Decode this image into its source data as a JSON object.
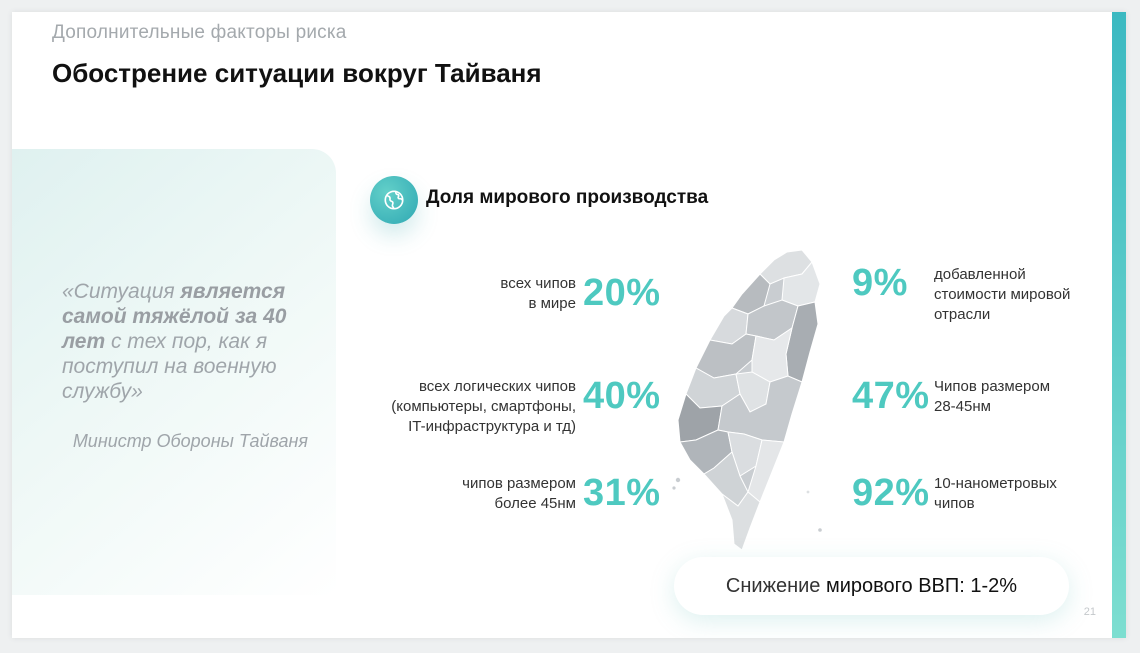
{
  "header": {
    "section_label": "Дополнительные факторы риска",
    "title": "Обострение ситуации вокруг Тайваня"
  },
  "quote": {
    "part1": "«Ситуация ",
    "bold": "является самой тяжёлой за 40 лет",
    "part2": " с тех пор, как я поступил на военную службу»",
    "author": "Министр Обороны Тайваня"
  },
  "section": {
    "heading": "Доля мирового производства",
    "icon": "globe-icon"
  },
  "stats_left": [
    {
      "label": "всех чипов\nв мире",
      "value": "20%"
    },
    {
      "label": "всех логических чипов\n(компьютеры, смартфоны,\nIT-инфраструктура и тд)",
      "value": "40%"
    },
    {
      "label": "чипов размером\nболее 45нм",
      "value": "31%"
    }
  ],
  "stats_right": [
    {
      "label": "добавленной\nстоимости мировой\nотрасли",
      "value": "9%"
    },
    {
      "label": "Чипов размером\n28-45нм",
      "value": "47%"
    },
    {
      "label": "10-нанометровых\nчипов",
      "value": "92%"
    }
  ],
  "gdp": {
    "prefix": "Снижение ",
    "emphasis": "мирового ВВП: 1-2%"
  },
  "page_number": "21",
  "colors": {
    "accent": "#4ec9c0",
    "accent_dark": "#2fa8b3",
    "map_fill": "#c9cdd1"
  }
}
